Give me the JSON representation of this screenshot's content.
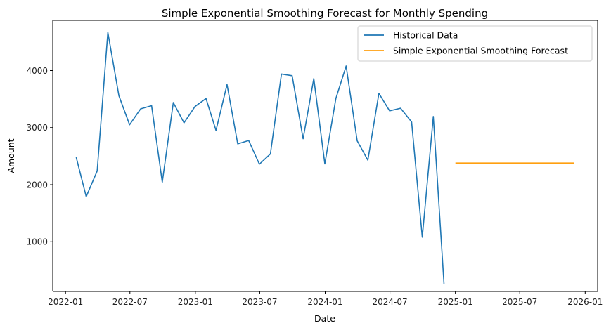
{
  "chart_data": {
    "type": "line",
    "title": "Simple Exponential Smoothing Forecast for Monthly Spending",
    "xlabel": "Date",
    "ylabel": "Amount",
    "xlim": [
      "2021-11-26",
      "2026-02-05"
    ],
    "ylim": [
      130,
      4880
    ],
    "x_ticks": [
      {
        "date": "2022-01-01",
        "label": "2022-01"
      },
      {
        "date": "2022-07-01",
        "label": "2022-07"
      },
      {
        "date": "2023-01-01",
        "label": "2023-01"
      },
      {
        "date": "2023-07-01",
        "label": "2023-07"
      },
      {
        "date": "2024-01-01",
        "label": "2024-01"
      },
      {
        "date": "2024-07-01",
        "label": "2024-07"
      },
      {
        "date": "2025-01-01",
        "label": "2025-01"
      },
      {
        "date": "2025-07-01",
        "label": "2025-07"
      },
      {
        "date": "2026-01-01",
        "label": "2026-01"
      }
    ],
    "y_ticks": [
      1000,
      2000,
      3000,
      4000
    ],
    "grid": false,
    "legend_position": "top-right",
    "series": [
      {
        "name": "Historical Data",
        "color": "#1f77b4",
        "x": [
          "2022-01-31",
          "2022-02-28",
          "2022-03-31",
          "2022-04-30",
          "2022-05-31",
          "2022-06-30",
          "2022-07-31",
          "2022-08-31",
          "2022-09-30",
          "2022-10-31",
          "2022-11-30",
          "2022-12-31",
          "2023-01-31",
          "2023-02-28",
          "2023-03-31",
          "2023-04-30",
          "2023-05-31",
          "2023-06-30",
          "2023-07-31",
          "2023-08-31",
          "2023-09-30",
          "2023-10-31",
          "2023-11-30",
          "2023-12-31",
          "2024-01-31",
          "2024-02-29",
          "2024-03-31",
          "2024-04-30",
          "2024-05-31",
          "2024-06-30",
          "2024-07-31",
          "2024-08-31",
          "2024-09-30",
          "2024-10-31",
          "2024-11-30",
          "2024-12-31"
        ],
        "values": [
          2480,
          1790,
          2240,
          4670,
          3560,
          3050,
          3330,
          3385,
          2045,
          3440,
          3085,
          3370,
          3510,
          2950,
          3755,
          2715,
          2775,
          2360,
          2540,
          3940,
          3910,
          2805,
          3860,
          2365,
          3510,
          4080,
          2770,
          2430,
          3600,
          3295,
          3340,
          3100,
          1080,
          3195,
          260,
          null
        ]
      },
      {
        "name": "Simple Exponential Smoothing Forecast",
        "color": "#ff9f0f",
        "x": [
          "2025-01-01",
          "2025-02-01",
          "2025-03-01",
          "2025-04-01",
          "2025-05-01",
          "2025-06-01",
          "2025-07-01",
          "2025-08-01",
          "2025-09-01",
          "2025-10-01",
          "2025-11-01",
          "2025-12-01"
        ],
        "values": [
          2380,
          2380,
          2380,
          2380,
          2380,
          2380,
          2380,
          2380,
          2380,
          2380,
          2380,
          2380
        ]
      }
    ]
  }
}
